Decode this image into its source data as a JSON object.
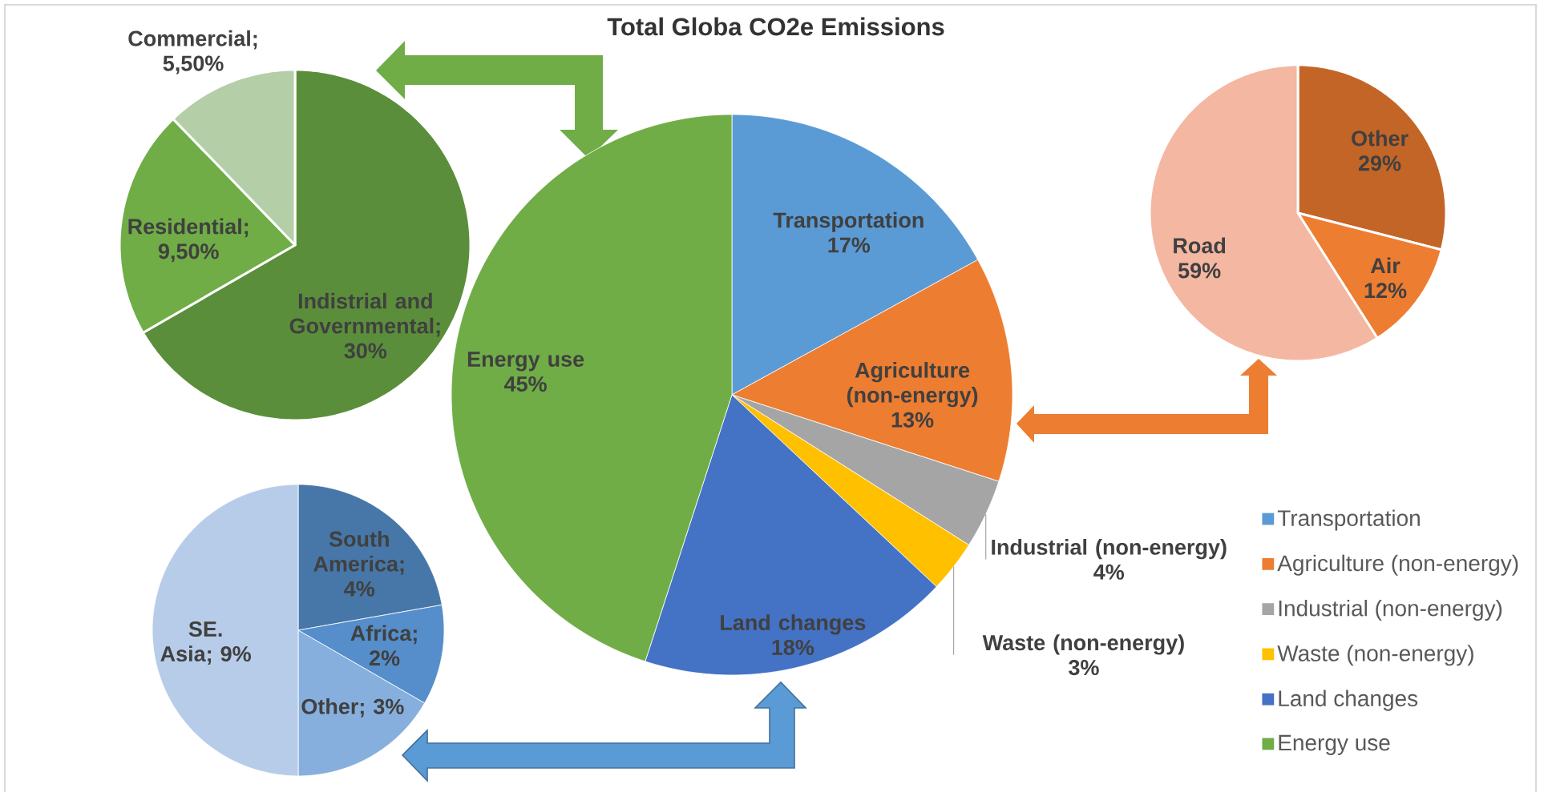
{
  "chart_data": [
    {
      "type": "pie",
      "title": "Total Globa CO2e Emissions",
      "categories": [
        "Transportation",
        "Agriculture (non-energy)",
        "Industrial (non-energy)",
        "Waste  (non-energy)",
        "Land changes",
        "Energy use"
      ],
      "values": [
        17,
        13,
        4,
        3,
        18,
        45
      ],
      "colors": [
        "#5B9BD5",
        "#ED7D31",
        "#A5A5A5",
        "#FFC000",
        "#4472C4",
        "#70AD47"
      ],
      "value_labels": [
        "17%",
        "13%",
        "4%",
        "3%",
        "18%",
        "45%"
      ],
      "legend": "bottom right"
    },
    {
      "type": "pie",
      "categories": [
        null,
        null,
        null
      ],
      "values": [
        30,
        9.5,
        5.5
      ],
      "colors": [
        "#5B8E3A",
        "#70AD47",
        "#B4CEA8"
      ],
      "value_labels": [
        "Indistrial and Governmental; 30%",
        "Residential; 9,50%",
        "Commercial; 5,50%"
      ]
    },
    {
      "type": "pie",
      "categories": [
        "Other",
        "Air",
        "Road"
      ],
      "values": [
        29,
        12,
        59
      ],
      "colors": [
        "#C46528",
        "#ED7D31",
        "#F4B7A2"
      ],
      "value_labels": [
        "29%",
        "12%",
        "59%"
      ]
    },
    {
      "type": "pie",
      "categories": [
        null,
        null,
        null,
        null
      ],
      "values": [
        4,
        2,
        3,
        9
      ],
      "colors": [
        "#4677A8",
        "#558ECA",
        "#87AFDD",
        "#B7CCE8"
      ],
      "value_labels": [
        "South America; 4%",
        "Africa; 2%",
        "Other; 3%",
        "SE. Asia; 9%"
      ]
    }
  ]
}
